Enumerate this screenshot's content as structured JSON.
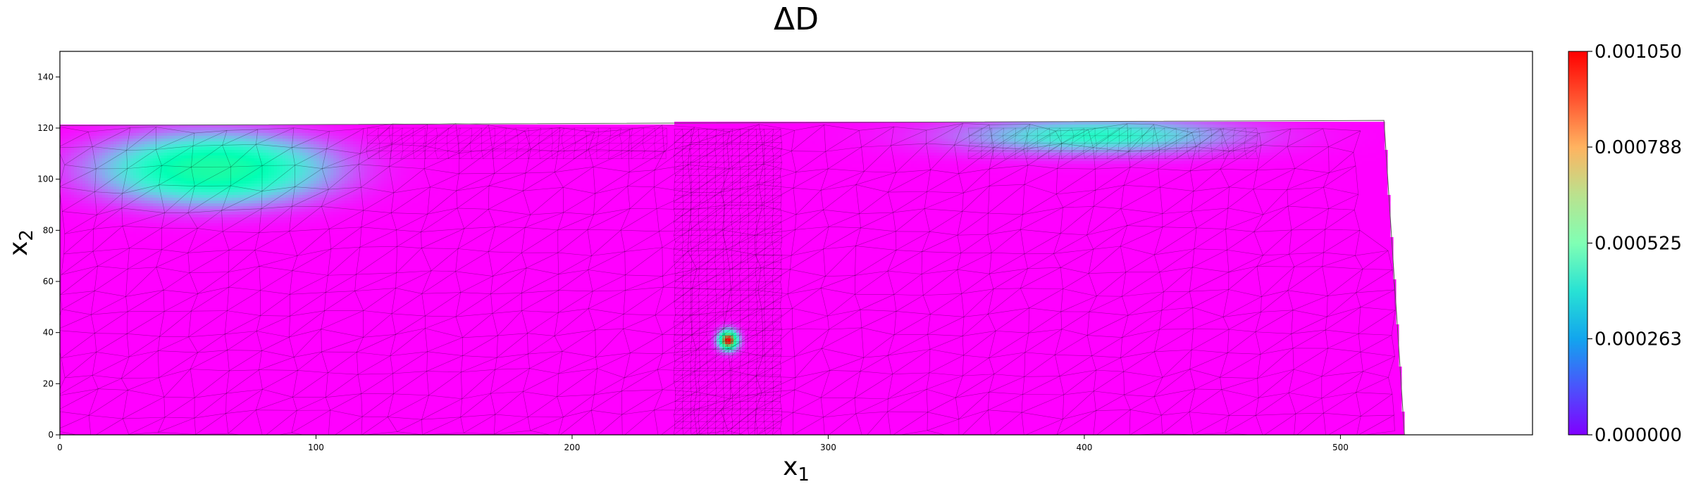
{
  "chart_data": {
    "type": "heatmap",
    "title": "ΔD",
    "xlabel": "x",
    "xlabel_sub": "1",
    "ylabel": "x",
    "ylabel_sub": "2",
    "xlim": [
      0,
      575
    ],
    "ylim": [
      0,
      150
    ],
    "x_ticks": [
      0,
      100,
      200,
      300,
      400,
      500
    ],
    "y_ticks": [
      0,
      20,
      40,
      60,
      80,
      100,
      120,
      140
    ],
    "colorbar": {
      "colormap": "rainbow",
      "min": 0.0,
      "max": 0.00105,
      "tick_values": [
        0.0,
        0.000263,
        0.000525,
        0.000788,
        0.00105
      ],
      "tick_labels": [
        "0.000000",
        "0.000263",
        "0.000525",
        "0.000788",
        "0.001050"
      ]
    },
    "domain_outline": [
      [
        0,
        0
      ],
      [
        525,
        0
      ],
      [
        517,
        123
      ],
      [
        0,
        121
      ]
    ],
    "field_features": [
      {
        "kind": "peak",
        "x": 261,
        "y": 37,
        "value": 0.00105
      },
      {
        "kind": "near-surface band",
        "x_range": [
          0,
          125
        ],
        "y_range": [
          80,
          121
        ],
        "value": 0.00058
      },
      {
        "kind": "near-surface band",
        "x_range": [
          345,
          460
        ],
        "y_range": [
          105,
          122
        ],
        "value": 0.00045
      }
    ],
    "grid": false,
    "legend": "colorbar-right"
  }
}
